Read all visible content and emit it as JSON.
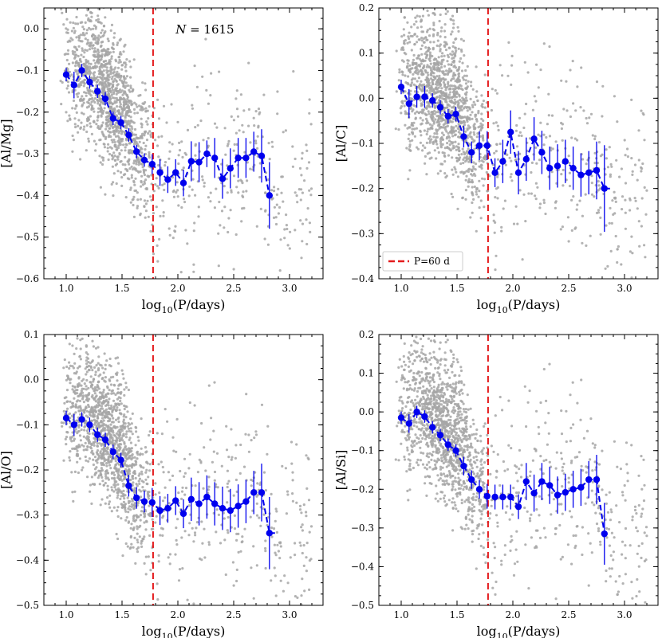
{
  "colors": {
    "scatter": "#a6a6a6",
    "binned": "#0000ee",
    "cutoff": "#e41a1c",
    "axis": "#000000"
  },
  "chart_data": [
    {
      "type": "scatter",
      "ylabel": "[Al/Mg]",
      "xlabel": "log10(P/days)",
      "xlabel_main": "log",
      "xlabel_sub": "10",
      "xlabel_tail": "(P/days)",
      "xlim": [
        0.8,
        3.3
      ],
      "ylim": [
        -0.6,
        0.05
      ],
      "xticks": [
        1.0,
        1.5,
        2.0,
        2.5,
        3.0
      ],
      "xtick_labels": [
        "1.0",
        "1.5",
        "2.0",
        "2.5",
        "3.0"
      ],
      "yticks": [
        -0.6,
        -0.5,
        -0.4,
        -0.3,
        -0.2,
        -0.1,
        0.0
      ],
      "ytick_labels": [
        "-0.6",
        "-0.5",
        "-0.4",
        "-0.3",
        "-0.2",
        "-0.1",
        "0.0"
      ],
      "cutoff_x": 1.778,
      "annotation": "N = 1615",
      "annotation_italic": "N",
      "annotation_rest": " = 1615",
      "scatter_center": -0.24,
      "scatter_spread": 0.11,
      "binned_x": [
        1.0,
        1.07,
        1.14,
        1.21,
        1.28,
        1.35,
        1.42,
        1.49,
        1.56,
        1.63,
        1.7,
        1.77,
        1.84,
        1.91,
        1.98,
        2.05,
        2.12,
        2.19,
        2.26,
        2.33,
        2.4,
        2.47,
        2.54,
        2.61,
        2.68,
        2.75,
        2.82,
        2.87
      ],
      "binned_y": [
        -0.11,
        -0.135,
        -0.1,
        -0.128,
        -0.15,
        -0.168,
        -0.215,
        -0.225,
        -0.255,
        -0.295,
        -0.315,
        -0.325,
        -0.345,
        -0.362,
        -0.345,
        -0.37,
        -0.318,
        -0.32,
        -0.3,
        -0.31,
        -0.36,
        -0.335,
        -0.31,
        -0.31,
        -0.295,
        -0.305,
        -0.4,
        -0.4
      ],
      "binned_err": [
        0.01,
        0.02,
        0.01,
        0.01,
        0.01,
        0.01,
        0.01,
        0.01,
        0.01,
        0.01,
        0.01,
        0.015,
        0.02,
        0.02,
        0.02,
        0.02,
        0.03,
        0.03,
        0.02,
        0.03,
        0.03,
        0.03,
        0.03,
        0.03,
        0.03,
        0.04,
        0.05,
        0.05
      ]
    },
    {
      "type": "scatter",
      "ylabel": "[Al/C]",
      "xlabel": "log10(P/days)",
      "xlabel_main": "log",
      "xlabel_sub": "10",
      "xlabel_tail": "(P/days)",
      "xlim": [
        0.8,
        3.3
      ],
      "ylim": [
        -0.4,
        0.2
      ],
      "xticks": [
        1.0,
        1.5,
        2.0,
        2.5,
        3.0
      ],
      "xtick_labels": [
        "1.0",
        "1.5",
        "2.0",
        "2.5",
        "3.0"
      ],
      "yticks": [
        -0.4,
        -0.3,
        -0.2,
        -0.1,
        0.0,
        0.1,
        0.2
      ],
      "ytick_labels": [
        "-0.4",
        "-0.3",
        "-0.2",
        "-0.1",
        "0.0",
        "0.1",
        "0.2"
      ],
      "cutoff_x": 1.778,
      "legend": "P=60 d",
      "scatter_center": -0.08,
      "scatter_spread": 0.1,
      "binned_x": [
        1.0,
        1.07,
        1.14,
        1.21,
        1.28,
        1.35,
        1.42,
        1.49,
        1.56,
        1.63,
        1.7,
        1.77,
        1.84,
        1.91,
        1.98,
        2.05,
        2.12,
        2.19,
        2.26,
        2.33,
        2.4,
        2.47,
        2.54,
        2.61,
        2.68,
        2.75,
        2.82,
        2.87
      ],
      "binned_y": [
        0.025,
        -0.012,
        0.003,
        0.003,
        -0.005,
        -0.02,
        -0.04,
        -0.035,
        -0.085,
        -0.12,
        -0.105,
        -0.105,
        -0.165,
        -0.14,
        -0.075,
        -0.165,
        -0.135,
        -0.09,
        -0.12,
        -0.155,
        -0.15,
        -0.14,
        -0.155,
        -0.17,
        -0.165,
        -0.16,
        -0.2,
        -0.2
      ],
      "binned_err": [
        0.01,
        0.02,
        0.015,
        0.015,
        0.01,
        0.01,
        0.01,
        0.01,
        0.015,
        0.015,
        0.02,
        0.02,
        0.02,
        0.03,
        0.03,
        0.03,
        0.03,
        0.03,
        0.03,
        0.03,
        0.03,
        0.03,
        0.03,
        0.03,
        0.03,
        0.04,
        0.06,
        0.06
      ]
    },
    {
      "type": "scatter",
      "ylabel": "[Al/O]",
      "xlabel": "log10(P/days)",
      "xlabel_main": "log",
      "xlabel_sub": "10",
      "xlabel_tail": "(P/days)",
      "xlim": [
        0.8,
        3.3
      ],
      "ylim": [
        -0.5,
        0.1
      ],
      "xticks": [
        1.0,
        1.5,
        2.0,
        2.5,
        3.0
      ],
      "xtick_labels": [
        "1.0",
        "1.5",
        "2.0",
        "2.5",
        "3.0"
      ],
      "yticks": [
        -0.5,
        -0.4,
        -0.3,
        -0.2,
        -0.1,
        0.0,
        0.1
      ],
      "ytick_labels": [
        "-0.5",
        "-0.4",
        "-0.3",
        "-0.2",
        "-0.1",
        "0.0",
        "0.1"
      ],
      "cutoff_x": 1.778,
      "scatter_center": -0.2,
      "scatter_spread": 0.1,
      "binned_x": [
        1.0,
        1.07,
        1.14,
        1.21,
        1.28,
        1.35,
        1.42,
        1.49,
        1.56,
        1.63,
        1.7,
        1.77,
        1.84,
        1.91,
        1.98,
        2.05,
        2.12,
        2.19,
        2.26,
        2.33,
        2.4,
        2.47,
        2.54,
        2.61,
        2.68,
        2.75,
        2.82,
        2.87
      ],
      "binned_y": [
        -0.085,
        -0.1,
        -0.088,
        -0.1,
        -0.122,
        -0.133,
        -0.16,
        -0.178,
        -0.235,
        -0.262,
        -0.27,
        -0.272,
        -0.29,
        -0.285,
        -0.268,
        -0.297,
        -0.265,
        -0.275,
        -0.26,
        -0.275,
        -0.285,
        -0.29,
        -0.28,
        -0.27,
        -0.25,
        -0.25,
        -0.34,
        -0.34
      ],
      "binned_err": [
        0.01,
        0.015,
        0.01,
        0.01,
        0.01,
        0.01,
        0.01,
        0.01,
        0.015,
        0.015,
        0.015,
        0.02,
        0.02,
        0.02,
        0.02,
        0.02,
        0.03,
        0.03,
        0.03,
        0.03,
        0.03,
        0.03,
        0.03,
        0.03,
        0.03,
        0.04,
        0.05,
        0.05
      ]
    },
    {
      "type": "scatter",
      "ylabel": "[Al/Si]",
      "xlabel": "log10(P/days)",
      "xlabel_main": "log",
      "xlabel_sub": "10",
      "xlabel_tail": "(P/days)",
      "xlim": [
        0.8,
        3.3
      ],
      "ylim": [
        -0.5,
        0.2
      ],
      "xticks": [
        1.0,
        1.5,
        2.0,
        2.5,
        3.0
      ],
      "xtick_labels": [
        "1.0",
        "1.5",
        "2.0",
        "2.5",
        "3.0"
      ],
      "yticks": [
        -0.5,
        -0.4,
        -0.3,
        -0.2,
        -0.1,
        0.0,
        0.1,
        0.2
      ],
      "ytick_labels": [
        "-0.5",
        "-0.4",
        "-0.3",
        "-0.2",
        "-0.1",
        "0.0",
        "0.1",
        "0.2"
      ],
      "cutoff_x": 1.778,
      "scatter_center": -0.12,
      "scatter_spread": 0.1,
      "binned_x": [
        1.0,
        1.07,
        1.14,
        1.21,
        1.28,
        1.35,
        1.42,
        1.49,
        1.56,
        1.63,
        1.7,
        1.77,
        1.84,
        1.91,
        1.98,
        2.05,
        2.12,
        2.19,
        2.26,
        2.33,
        2.4,
        2.47,
        2.54,
        2.61,
        2.68,
        2.75,
        2.82,
        2.87
      ],
      "binned_y": [
        -0.015,
        -0.03,
        0.0,
        -0.012,
        -0.04,
        -0.06,
        -0.085,
        -0.1,
        -0.14,
        -0.175,
        -0.2,
        -0.218,
        -0.22,
        -0.22,
        -0.22,
        -0.245,
        -0.18,
        -0.21,
        -0.18,
        -0.19,
        -0.215,
        -0.208,
        -0.2,
        -0.195,
        -0.175,
        -0.175,
        -0.315,
        -0.315
      ],
      "binned_err": [
        0.01,
        0.015,
        0.01,
        0.01,
        0.01,
        0.01,
        0.01,
        0.01,
        0.015,
        0.015,
        0.015,
        0.02,
        0.02,
        0.02,
        0.02,
        0.02,
        0.03,
        0.03,
        0.03,
        0.03,
        0.03,
        0.03,
        0.03,
        0.03,
        0.03,
        0.04,
        0.05,
        0.05
      ]
    }
  ]
}
